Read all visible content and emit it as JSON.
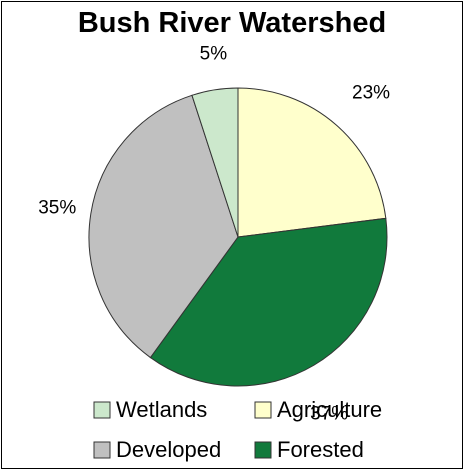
{
  "chart_data": {
    "type": "pie",
    "title": "Bush River Watershed",
    "slices": [
      {
        "name": "Agriculture",
        "value": 23,
        "label": "23%",
        "color": "#FFFFCC"
      },
      {
        "name": "Forested",
        "value": 37,
        "label": "37%",
        "color": "#117A3C"
      },
      {
        "name": "Developed",
        "value": 35,
        "label": "35%",
        "color": "#C0C0C0"
      },
      {
        "name": "Wetlands",
        "value": 5,
        "label": "5%",
        "color": "#CCE8CC"
      }
    ],
    "legend": {
      "placement": "bottom",
      "items": [
        {
          "name": "Wetlands",
          "color": "#CCE8CC"
        },
        {
          "name": "Agriculture",
          "color": "#FFFFCC"
        },
        {
          "name": "Developed",
          "color": "#C0C0C0"
        },
        {
          "name": "Forested",
          "color": "#117A3C"
        }
      ]
    }
  }
}
